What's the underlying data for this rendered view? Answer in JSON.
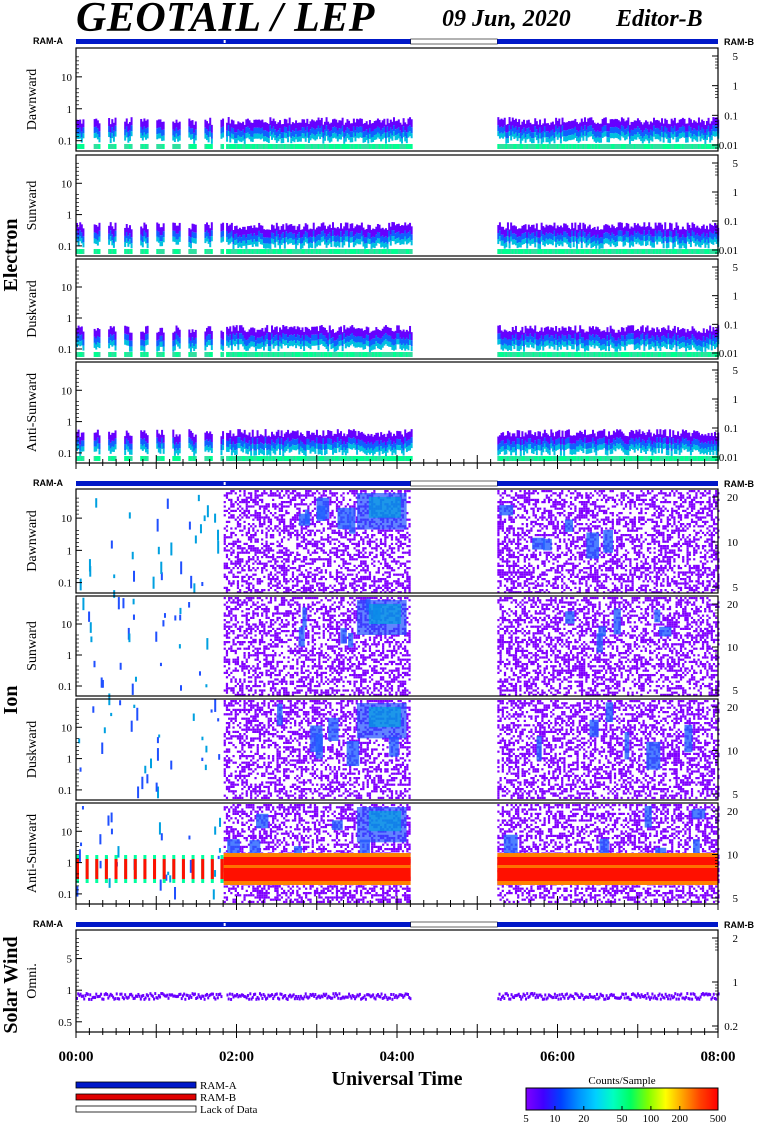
{
  "header": {
    "title": "GEOTAIL / LEP",
    "date": "09 Jun, 2020",
    "editor": "Editor-B"
  },
  "ram_labels": {
    "left": "RAM-A",
    "right": "RAM-B"
  },
  "groups": [
    {
      "name": "Electron",
      "panels": [
        {
          "name": "Dawnward",
          "left_ticks": [
            "10",
            "1",
            "0.1"
          ],
          "right_ticks": [
            "5",
            "1",
            "0.1",
            "0.01"
          ]
        },
        {
          "name": "Sunward",
          "left_ticks": [
            "10",
            "1",
            "0.1"
          ],
          "right_ticks": [
            "5",
            "1",
            "0.1",
            "0.01"
          ]
        },
        {
          "name": "Duskward",
          "left_ticks": [
            "10",
            "1",
            "0.1"
          ],
          "right_ticks": [
            "5",
            "1",
            "0.1",
            "0.01"
          ]
        },
        {
          "name": "Anti-Sunward",
          "left_ticks": [
            "10",
            "1",
            "0.1"
          ],
          "right_ticks": [
            "5",
            "1",
            "0.1",
            "0.01"
          ]
        }
      ]
    },
    {
      "name": "Ion",
      "panels": [
        {
          "name": "Dawnward",
          "left_ticks": [
            "10",
            "1",
            "0.1"
          ],
          "right_ticks": [
            "20",
            "10",
            "5"
          ]
        },
        {
          "name": "Sunward",
          "left_ticks": [
            "10",
            "1",
            "0.1"
          ],
          "right_ticks": [
            "20",
            "10",
            "5"
          ]
        },
        {
          "name": "Duskward",
          "left_ticks": [
            "10",
            "1",
            "0.1"
          ],
          "right_ticks": [
            "20",
            "10",
            "5"
          ]
        },
        {
          "name": "Anti-Sunward",
          "left_ticks": [
            "10",
            "1",
            "0.1"
          ],
          "right_ticks": [
            "20",
            "10",
            "5"
          ]
        }
      ]
    },
    {
      "name": "Solar Wind",
      "panels": [
        {
          "name": "Omni.",
          "left_ticks": [
            "5",
            "1",
            "0.5"
          ],
          "right_ticks": [
            "2",
            "1",
            "0.2"
          ]
        }
      ]
    }
  ],
  "x_axis": {
    "label": "Universal Time",
    "ticks": [
      "00:00",
      "02:00",
      "04:00",
      "06:00",
      "08:00"
    ]
  },
  "legend": {
    "items": [
      {
        "label": "RAM-A",
        "color": "#0018c8"
      },
      {
        "label": "RAM-B",
        "color": "#e00000"
      },
      {
        "label": "Lack of Data",
        "color": "#ffffff"
      }
    ]
  },
  "colorbar": {
    "title": "Counts/Sample",
    "ticks": [
      "5",
      "10",
      "20",
      "50",
      "100",
      "200",
      "500"
    ]
  },
  "chart_data": {
    "type": "heatmap",
    "title": "GEOTAIL / LEP",
    "xlabel": "Universal Time",
    "x_range_hours": [
      0,
      8
    ],
    "data_gap_hours": [
      [
        1.83,
        1.87
      ],
      [
        4.17,
        5.25
      ]
    ],
    "colorbar_range": [
      5,
      500
    ],
    "colorbar_scale": "log",
    "ram_mode": "RAM-A"
  }
}
